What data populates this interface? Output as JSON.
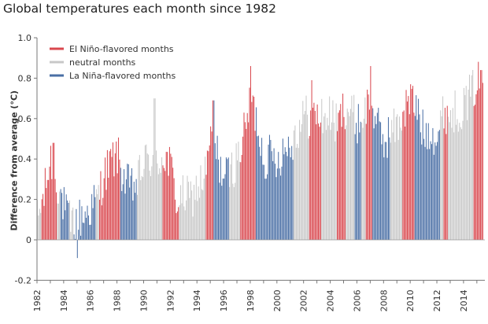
{
  "title": "Global temperatures each month since 1982",
  "chart_data": {
    "type": "bar",
    "title": "Global temperatures each month since 1982",
    "ylabel": "Difference from average (°C)",
    "xlabel": "",
    "ylim": [
      -0.2,
      1.0
    ],
    "yticks": [
      "1.0",
      "0.8",
      "0.6",
      "0.4",
      "0.2",
      "0",
      "-0.2"
    ],
    "xticks": [
      "1982",
      "1984",
      "1986",
      "1988",
      "1990",
      "1992",
      "1994",
      "1996",
      "1998",
      "2000",
      "2002",
      "2004",
      "2006",
      "2008",
      "2010",
      "2012",
      "2014"
    ],
    "grid": false,
    "legend_position": "top-left",
    "colors": {
      "el_nino": "#d9474e",
      "neutral": "#c8c8c8",
      "la_nina": "#4a6fa5"
    },
    "series": [
      {
        "name": "El Niño-flavored months",
        "color": "#d9474e"
      },
      {
        "name": "neutral months",
        "color": "#c8c8c8"
      },
      {
        "name": "La Niña-flavored months",
        "color": "#4a6fa5"
      }
    ],
    "phases": [
      [
        "N",
        1982,
        0,
        1982.3
      ],
      [
        "E",
        1982.3,
        1983.5
      ],
      [
        "N",
        1983.5,
        1983.75
      ],
      [
        "L",
        1983.75,
        1984.4
      ],
      [
        "N",
        1984.4,
        1984.7
      ],
      [
        "L",
        1984.7,
        1986.4
      ],
      [
        "N",
        1986.4,
        1986.6
      ],
      [
        "E",
        1986.6,
        1988.2
      ],
      [
        "L",
        1988.2,
        1989.5
      ],
      [
        "N",
        1989.5,
        1991.4
      ],
      [
        "E",
        1991.4,
        1992.6
      ],
      [
        "N",
        1992.6,
        1994.6
      ],
      [
        "E",
        1994.6,
        1995.2
      ],
      [
        "L",
        1995.2,
        1996.4
      ],
      [
        "N",
        1996.4,
        1997.2
      ],
      [
        "E",
        1997.2,
        1998.4
      ],
      [
        "L",
        1998.4,
        2001.2
      ],
      [
        "N",
        2001.2,
        2002.4
      ],
      [
        "E",
        2002.4,
        2003.3
      ],
      [
        "N",
        2003.3,
        2004.5
      ],
      [
        "E",
        2004.5,
        2005.1
      ],
      [
        "N",
        2005.1,
        2005.8
      ],
      [
        "L",
        2005.8,
        2006.3
      ],
      [
        "N",
        2006.3,
        2006.6
      ],
      [
        "E",
        2006.6,
        2007.1
      ],
      [
        "L",
        2007.1,
        2008.5
      ],
      [
        "N",
        2008.5,
        2009.4
      ],
      [
        "E",
        2009.4,
        2010.3
      ],
      [
        "L",
        2010.3,
        2012.2
      ],
      [
        "N",
        2012.2,
        2012.5
      ],
      [
        "E",
        2012.5,
        2012.8
      ],
      [
        "N",
        2012.8,
        2014.7
      ],
      [
        "E",
        2014.7,
        2015.5
      ]
    ],
    "anomaly_trend_points": [
      [
        1982.0,
        0.1
      ],
      [
        1982.5,
        0.22
      ],
      [
        1983.0,
        0.4
      ],
      [
        1983.5,
        0.28
      ],
      [
        1984.0,
        0.16
      ],
      [
        1984.5,
        0.08
      ],
      [
        1985.0,
        0.1
      ],
      [
        1985.5,
        0.12
      ],
      [
        1986.0,
        0.16
      ],
      [
        1986.5,
        0.2
      ],
      [
        1987.0,
        0.32
      ],
      [
        1987.5,
        0.38
      ],
      [
        1988.0,
        0.42
      ],
      [
        1988.5,
        0.3
      ],
      [
        1989.0,
        0.25
      ],
      [
        1989.5,
        0.28
      ],
      [
        1990.0,
        0.38
      ],
      [
        1990.5,
        0.4
      ],
      [
        1991.0,
        0.38
      ],
      [
        1991.5,
        0.42
      ],
      [
        1992.0,
        0.36
      ],
      [
        1992.5,
        0.18
      ],
      [
        1993.0,
        0.22
      ],
      [
        1993.5,
        0.2
      ],
      [
        1994.0,
        0.26
      ],
      [
        1994.5,
        0.3
      ],
      [
        1995.0,
        0.48
      ],
      [
        1995.5,
        0.42
      ],
      [
        1996.0,
        0.3
      ],
      [
        1996.5,
        0.34
      ],
      [
        1997.0,
        0.4
      ],
      [
        1997.5,
        0.52
      ],
      [
        1998.0,
        0.7
      ],
      [
        1998.5,
        0.58
      ],
      [
        1999.0,
        0.4
      ],
      [
        1999.5,
        0.42
      ],
      [
        2000.0,
        0.4
      ],
      [
        2000.5,
        0.45
      ],
      [
        2001.0,
        0.48
      ],
      [
        2001.5,
        0.54
      ],
      [
        2002.0,
        0.62
      ],
      [
        2002.5,
        0.6
      ],
      [
        2003.0,
        0.62
      ],
      [
        2003.5,
        0.6
      ],
      [
        2004.0,
        0.62
      ],
      [
        2004.5,
        0.56
      ],
      [
        2005.0,
        0.66
      ],
      [
        2005.5,
        0.64
      ],
      [
        2006.0,
        0.58
      ],
      [
        2006.5,
        0.62
      ],
      [
        2007.0,
        0.72
      ],
      [
        2007.5,
        0.56
      ],
      [
        2008.0,
        0.48
      ],
      [
        2008.5,
        0.54
      ],
      [
        2009.0,
        0.56
      ],
      [
        2009.5,
        0.64
      ],
      [
        2010.0,
        0.7
      ],
      [
        2010.5,
        0.64
      ],
      [
        2011.0,
        0.52
      ],
      [
        2011.5,
        0.56
      ],
      [
        2012.0,
        0.5
      ],
      [
        2012.5,
        0.64
      ],
      [
        2013.0,
        0.62
      ],
      [
        2013.5,
        0.64
      ],
      [
        2014.0,
        0.66
      ],
      [
        2014.5,
        0.72
      ],
      [
        2015.0,
        0.78
      ],
      [
        2015.4,
        0.8
      ]
    ]
  },
  "ui": {
    "zero_label": "0"
  }
}
